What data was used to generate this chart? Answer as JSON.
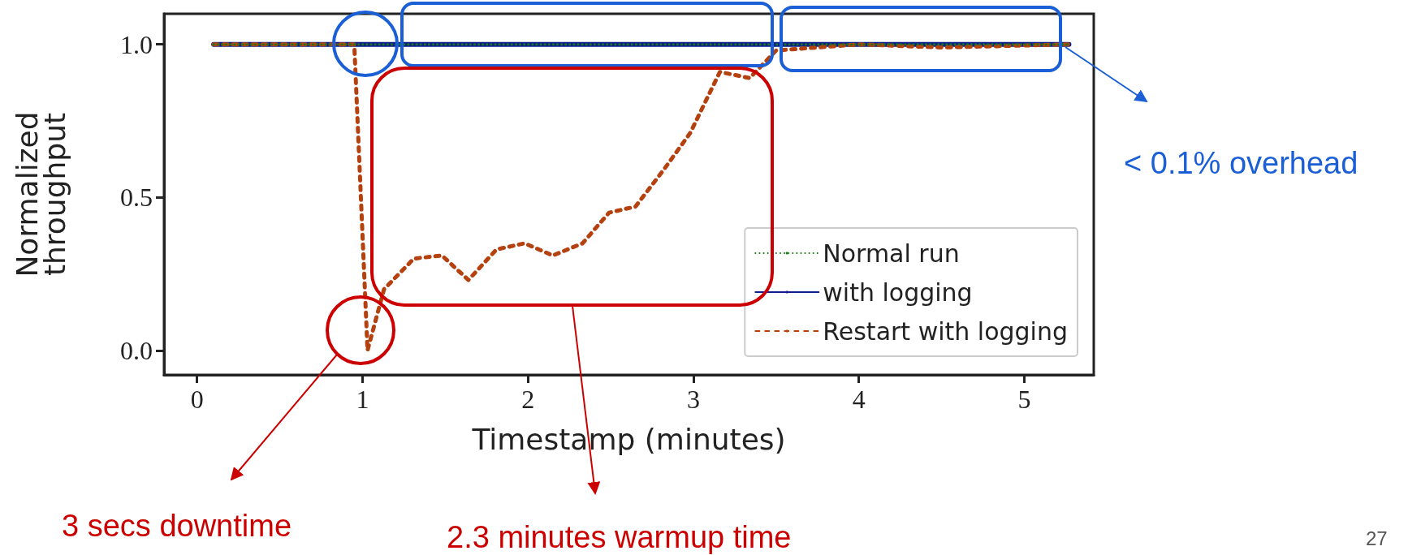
{
  "chart_data": {
    "type": "line",
    "xlabel": "Timestamp (minutes)",
    "ylabel": "Normalized\nthroughput",
    "xlim": [
      -0.2,
      5.42
    ],
    "ylim": [
      -0.08,
      1.1
    ],
    "xticks": [
      0,
      1,
      2,
      3,
      4,
      5
    ],
    "yticks": [
      {
        "value": 0,
        "label": "0.0"
      },
      {
        "value": 0.5,
        "label": "0.5"
      },
      {
        "value": 1,
        "label": "1.0"
      }
    ],
    "grid": false,
    "legend": "bottom right",
    "marker": "none",
    "series": [
      {
        "name": "Normal run",
        "color": "#1a7a1a",
        "line_style": "dotted",
        "x": [
          0.1,
          1.0,
          2.0,
          3.0,
          4.0,
          5.27
        ],
        "values": [
          1.0,
          1.0,
          1.0,
          1.0,
          1.0,
          1.0
        ]
      },
      {
        "name": "with logging",
        "color": "#0d1f8c",
        "line_style": "solid",
        "x": [
          0.1,
          1.0,
          2.0,
          3.0,
          4.0,
          5.27
        ],
        "values": [
          1.0,
          1.0,
          1.0,
          1.0,
          1.0,
          1.0
        ]
      },
      {
        "name": "Restart with logging",
        "color": "#b5410f",
        "line_style": "dashed",
        "x": [
          0.1,
          0.95,
          1.03,
          1.13,
          1.31,
          1.48,
          1.64,
          1.81,
          1.98,
          2.15,
          2.33,
          2.49,
          2.65,
          2.82,
          2.98,
          3.16,
          3.34,
          3.5,
          4.0,
          4.5,
          5.27
        ],
        "values": [
          1.0,
          1.0,
          0.0,
          0.2,
          0.3,
          0.31,
          0.23,
          0.33,
          0.35,
          0.31,
          0.35,
          0.45,
          0.47,
          0.59,
          0.71,
          0.91,
          0.89,
          0.98,
          1.0,
          0.99,
          1.0
        ]
      }
    ],
    "annotations": [
      "< 0.1% overhead",
      "3 secs downtime",
      "2.3 minutes warmup time",
      "27"
    ]
  }
}
